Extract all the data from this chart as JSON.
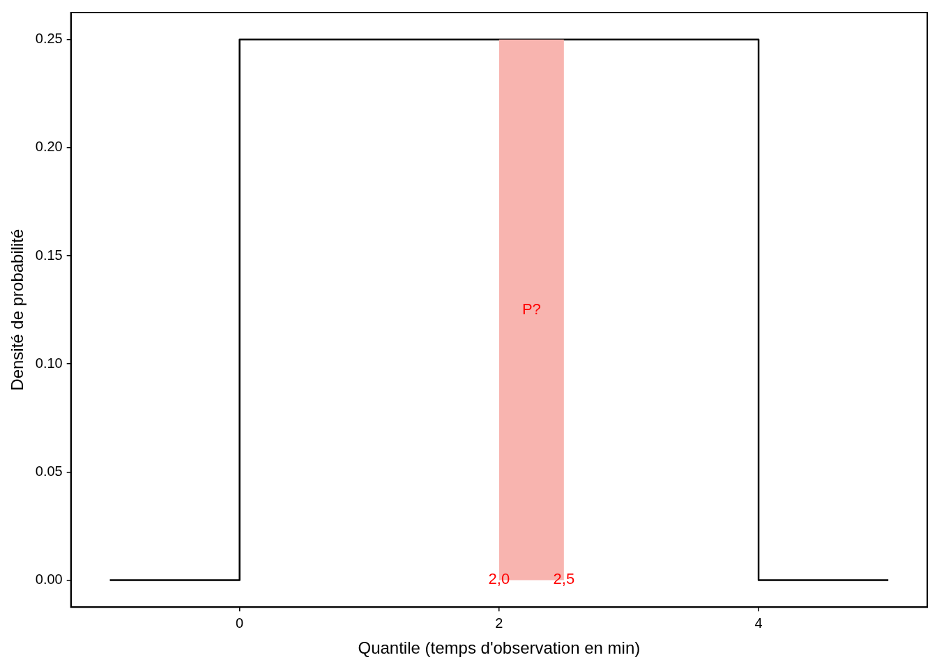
{
  "chart_data": {
    "type": "line",
    "xlabel": "Quantile (temps d'observation en min)",
    "ylabel": "Densité de probabilité",
    "xlim": [
      -1.3,
      5.3
    ],
    "ylim": [
      -0.0125,
      0.2625
    ],
    "xticks": [
      0,
      2,
      4
    ],
    "yticks": [
      {
        "value": 0,
        "label": "0.00"
      },
      {
        "value": 0.05,
        "label": "0.05"
      },
      {
        "value": 0.1,
        "label": "0.10"
      },
      {
        "value": 0.15,
        "label": "0.15"
      },
      {
        "value": 0.2,
        "label": "0.20"
      },
      {
        "value": 0.25,
        "label": "0.25"
      }
    ],
    "series": [
      {
        "type": "area",
        "color": "#f8b4af",
        "x": [
          2,
          2.5
        ],
        "values": [
          0.25,
          0.25
        ]
      },
      {
        "type": "line",
        "color": "#000000",
        "x": [
          -1,
          0,
          0,
          4,
          4,
          5
        ],
        "values": [
          0,
          0,
          0.25,
          0.25,
          0,
          0
        ]
      }
    ],
    "annotations": [
      "P?",
      {
        "text": "2,0",
        "x": 2,
        "y": 0
      },
      {
        "text": "2,5",
        "x": 2.5,
        "y": 0
      }
    ],
    "grid": false,
    "legend": false,
    "marker": "none",
    "line_style": "solid"
  }
}
